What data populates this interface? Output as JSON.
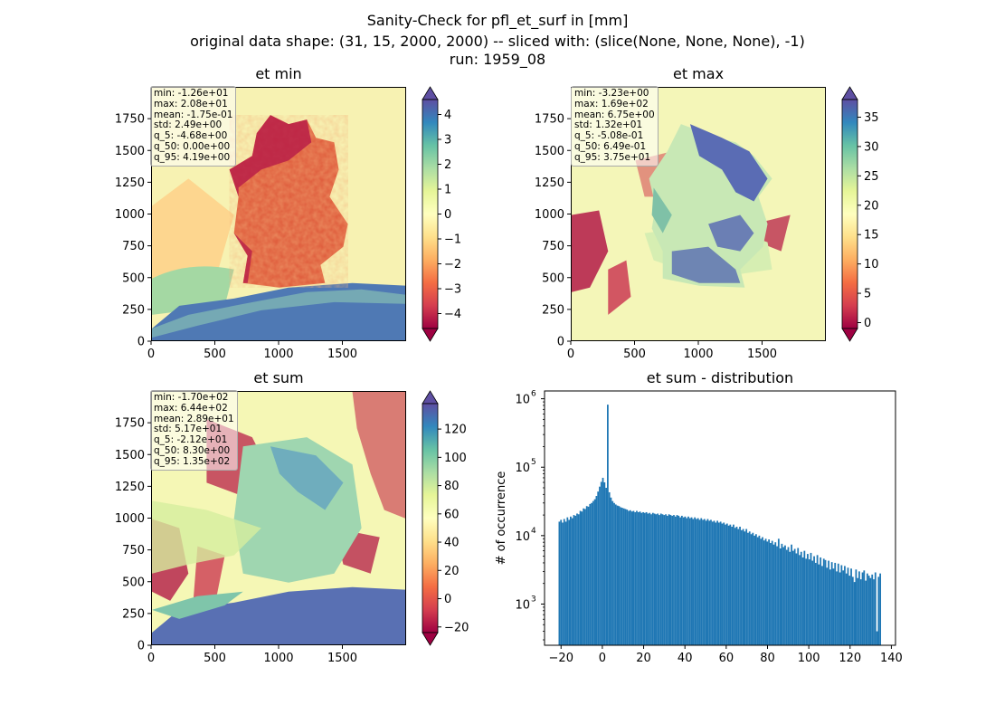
{
  "figure": {
    "title_lines": [
      "Sanity-Check for pfl_et_surf in [mm]",
      "original data shape: (31, 15, 2000, 2000) -- sliced with: (slice(None, None, None), -1)",
      "run: 1959_08"
    ]
  },
  "maps": [
    {
      "title": "et min",
      "stats": [
        "min: -1.26e+01",
        "max: 2.08e+01",
        "mean: -1.75e-01",
        "std: 2.49e+00",
        "q_5: -4.68e+00",
        "q_50: 0.00e+00",
        "q_95: 4.19e+00"
      ],
      "x_ticks": [
        "0",
        "500",
        "1000",
        "1500"
      ],
      "y_ticks": [
        "0",
        "250",
        "500",
        "750",
        "1000",
        "1250",
        "1500",
        "1750"
      ],
      "colorbar": {
        "cmap": "Spectral",
        "range": [
          -4.6,
          4.6
        ],
        "ticks": [
          "4",
          "3",
          "2",
          "1",
          "0",
          "−1",
          "−2",
          "−3",
          "−4"
        ],
        "extend": "both"
      }
    },
    {
      "title": "et max",
      "stats": [
        "min: -3.23e+00",
        "max: 1.69e+02",
        "mean: 6.75e+00",
        "std: 1.32e+01",
        "q_5: -5.08e-01",
        "q_50: 6.49e-01",
        "q_95: 3.75e+01"
      ],
      "x_ticks": [
        "0",
        "500",
        "1000",
        "1500"
      ],
      "y_ticks": [
        "0",
        "250",
        "500",
        "750",
        "1000",
        "1250",
        "1500",
        "1750"
      ],
      "colorbar": {
        "cmap": "Spectral",
        "range": [
          -1,
          38
        ],
        "ticks": [
          "35",
          "30",
          "25",
          "20",
          "15",
          "10",
          "5",
          "0"
        ],
        "extend": "both"
      }
    },
    {
      "title": "et sum",
      "stats": [
        "min: -1.70e+02",
        "max: 6.44e+02",
        "mean: 2.89e+01",
        "std: 5.17e+01",
        "q_5: -2.12e+01",
        "q_50: 8.30e+00",
        "q_95: 1.35e+02"
      ],
      "x_ticks": [
        "0",
        "500",
        "1000",
        "1500"
      ],
      "y_ticks": [
        "0",
        "250",
        "500",
        "750",
        "1000",
        "1250",
        "1500",
        "1750"
      ],
      "colorbar": {
        "cmap": "Spectral",
        "range": [
          -24,
          138
        ],
        "ticks": [
          "120",
          "100",
          "80",
          "60",
          "40",
          "20",
          "0",
          "−20"
        ],
        "extend": "both"
      }
    }
  ],
  "chart_data": {
    "type": "bar",
    "title": "et sum - distribution",
    "xlabel": "",
    "ylabel": "# of occurrence",
    "yscale": "log",
    "xlim": [
      -28,
      142
    ],
    "ylim": [
      250,
      1300000
    ],
    "x_ticks": [
      -20,
      0,
      20,
      40,
      60,
      80,
      100,
      120,
      140
    ],
    "x_tick_labels": [
      "−20",
      "0",
      "20",
      "40",
      "60",
      "80",
      "100",
      "120",
      "140"
    ],
    "y_ticks": [
      1000,
      10000,
      100000,
      1000000
    ],
    "y_tick_labels": [
      "10",
      "10",
      "10",
      "10"
    ],
    "y_tick_exponents": [
      "3",
      "4",
      "5",
      "6"
    ],
    "color": "#1f77b4",
    "bin_range": [
      -21.2,
      135
    ],
    "bins": 200,
    "values": [
      16000,
      17000,
      15500,
      17500,
      16000,
      18500,
      17000,
      19000,
      18000,
      20000,
      19500,
      21000,
      20500,
      23000,
      22500,
      25000,
      24500,
      27000,
      26500,
      29000,
      30000,
      32000,
      34000,
      38000,
      44000,
      52000,
      61000,
      70000,
      60000,
      50000,
      820000,
      43000,
      36000,
      32000,
      30000,
      28500,
      27500,
      27000,
      26000,
      25500,
      25000,
      24500,
      24000,
      23000,
      23500,
      22500,
      23000,
      22000,
      23000,
      22000,
      22500,
      21500,
      22000,
      21500,
      22000,
      21000,
      21500,
      20500,
      21500,
      21000,
      20500,
      21000,
      20000,
      21000,
      20500,
      20000,
      20500,
      19500,
      20500,
      20000,
      19500,
      20000,
      19000,
      20000,
      19500,
      18500,
      19500,
      18500,
      19000,
      18000,
      19000,
      18000,
      18500,
      17500,
      18500,
      17500,
      18000,
      17000,
      18000,
      17000,
      17500,
      16500,
      17500,
      16500,
      17000,
      16000,
      16500,
      15500,
      16500,
      15500,
      16000,
      15000,
      15500,
      14500,
      15000,
      14000,
      14500,
      13500,
      14500,
      13000,
      13500,
      12500,
      13500,
      12000,
      12500,
      11500,
      12500,
      11000,
      11500,
      10500,
      11000,
      10000,
      10500,
      9500,
      10000,
      9000,
      9500,
      8500,
      9000,
      8200,
      8800,
      7800,
      8400,
      7400,
      8000,
      7000,
      9000,
      6500,
      7600,
      6800,
      7200,
      6200,
      6800,
      5800,
      7400,
      6000,
      6400,
      5500,
      6600,
      5200,
      5800,
      4800,
      6000,
      4600,
      5400,
      4500,
      5600,
      4300,
      5000,
      4000,
      5200,
      3800,
      4800,
      3600,
      4600,
      4400,
      3400,
      4300,
      3200,
      4100,
      3300,
      4000,
      3000,
      3900,
      2900,
      3700,
      3100,
      3600,
      2800,
      3400,
      2600,
      3300,
      2500,
      2100,
      3200,
      2400,
      3000,
      2300,
      2900,
      3100,
      2200,
      2800,
      2600,
      2400,
      2700,
      2300,
      2900,
      400,
      2500,
      2800
    ]
  }
}
